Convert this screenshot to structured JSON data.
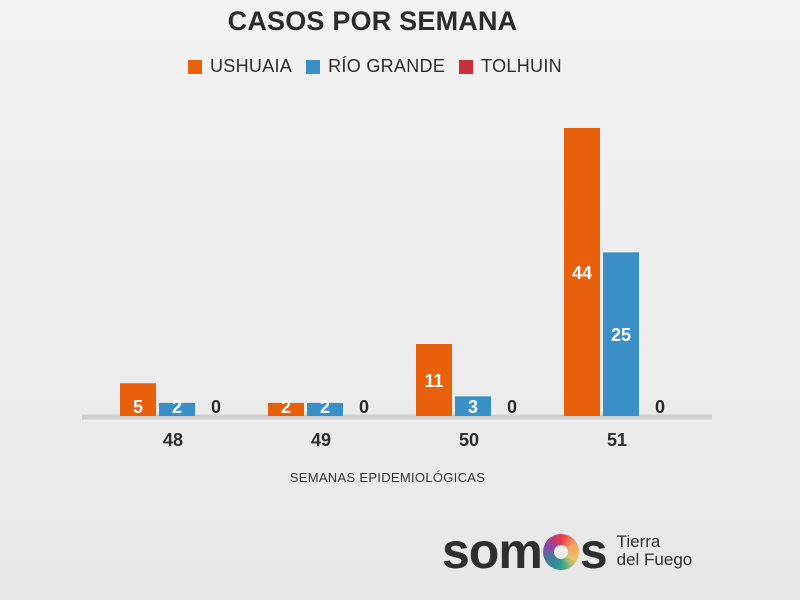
{
  "chart_data": {
    "type": "bar",
    "title": "CASOS POR SEMANA",
    "xlabel": "SEMANAS EPIDEMIOLÓGICAS",
    "ylabel": "",
    "categories": [
      "48",
      "49",
      "50",
      "51"
    ],
    "series": [
      {
        "name": "USHUAIA",
        "color": "#e8600c",
        "values": [
          5,
          2,
          11,
          44
        ]
      },
      {
        "name": "RÍO GRANDE",
        "color": "#3a8fc7",
        "values": [
          2,
          2,
          3,
          25
        ]
      },
      {
        "name": "TOLHUIN",
        "color": "#c7303c",
        "values": [
          0,
          0,
          0,
          0
        ]
      }
    ],
    "ylim": [
      0,
      44
    ],
    "legend": "top",
    "grid": false
  },
  "logo": {
    "word_start": "som",
    "word_end": "s",
    "line1": "Tierra",
    "line2": "del Fuego"
  }
}
